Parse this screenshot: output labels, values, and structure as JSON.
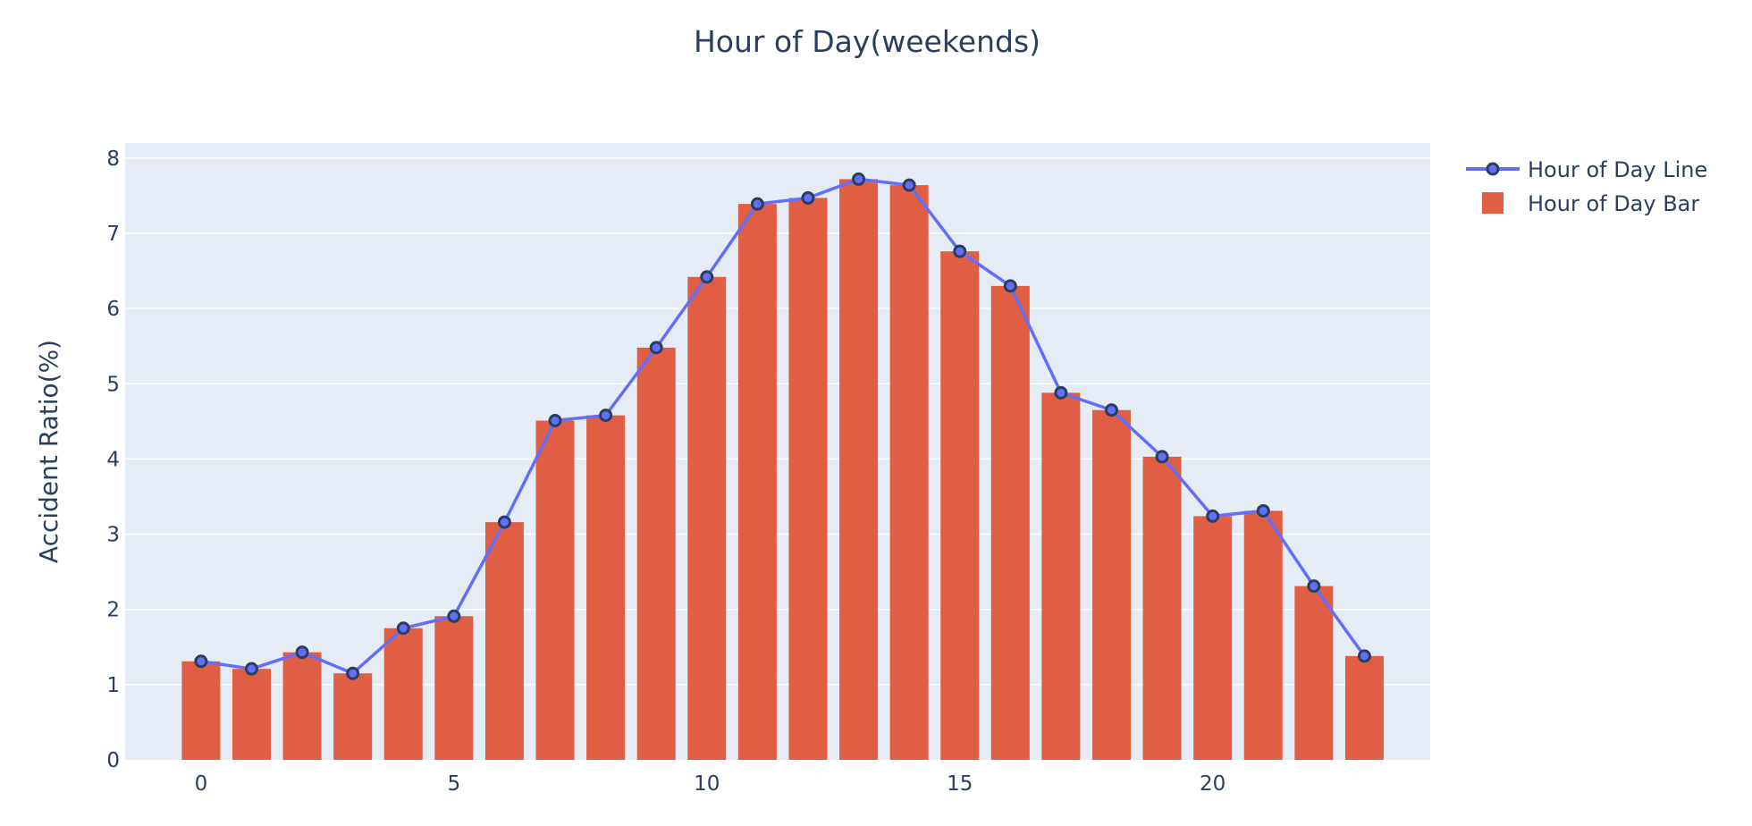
{
  "chart_data": {
    "type": "bar",
    "title": "Hour of Day(weekends)",
    "ylabel": "Accident Ratio(%)",
    "xlabel": "",
    "x": [
      0,
      1,
      2,
      3,
      4,
      5,
      6,
      7,
      8,
      9,
      10,
      11,
      12,
      13,
      14,
      15,
      16,
      17,
      18,
      19,
      20,
      21,
      22,
      23
    ],
    "x_ticks": [
      0,
      5,
      10,
      15,
      20
    ],
    "y_ticks": [
      0,
      1,
      2,
      3,
      4,
      5,
      6,
      7,
      8
    ],
    "xlim": [
      -1.5,
      24.3
    ],
    "ylim": [
      0,
      8.2
    ],
    "grid": true,
    "legend_position": "top-right",
    "series": [
      {
        "name": "Hour of Day Line",
        "type": "line",
        "color": "#636efa",
        "marker_color": "#2a3f5f",
        "values": [
          1.31,
          1.21,
          1.43,
          1.15,
          1.75,
          1.91,
          3.16,
          4.51,
          4.58,
          5.48,
          6.42,
          7.39,
          7.47,
          7.72,
          7.64,
          6.76,
          6.3,
          4.88,
          4.65,
          4.03,
          3.24,
          3.31,
          2.31,
          1.38
        ]
      },
      {
        "name": "Hour of Day Bar",
        "type": "bar",
        "color": "#e05e44",
        "values": [
          1.31,
          1.21,
          1.43,
          1.15,
          1.75,
          1.91,
          3.16,
          4.51,
          4.58,
          5.48,
          6.42,
          7.39,
          7.47,
          7.72,
          7.64,
          6.76,
          6.3,
          4.88,
          4.65,
          4.03,
          3.24,
          3.31,
          2.31,
          1.38
        ]
      }
    ]
  },
  "colors": {
    "plot_bg": "#e5ecf6",
    "grid": "#ffffff",
    "text": "#2a3f5f"
  }
}
